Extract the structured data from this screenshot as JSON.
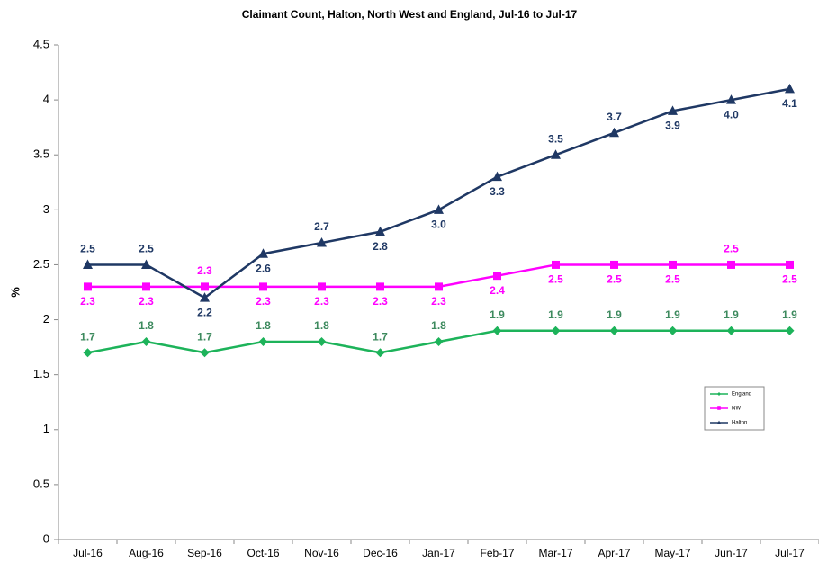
{
  "chart_data": {
    "type": "line",
    "title": "Claimant Count, Halton, North West and England, Jul-16 to Jul-17",
    "y_label": "%",
    "categories": [
      "Jul-16",
      "Aug-16",
      "Sep-16",
      "Oct-16",
      "Nov-16",
      "Dec-16",
      "Jan-17",
      "Feb-17",
      "Mar-17",
      "Apr-17",
      "May-17",
      "Jun-17",
      "Jul-17"
    ],
    "series": [
      {
        "name": "England",
        "color": "#1db35a",
        "label_color": "#3d8a5e",
        "marker": "diamond",
        "values": [
          1.7,
          1.8,
          1.7,
          1.8,
          1.8,
          1.7,
          1.8,
          1.9,
          1.9,
          1.9,
          1.9,
          1.9,
          1.9
        ],
        "value_labels": [
          "1.7",
          "1.8",
          "1.7",
          "1.8",
          "1.8",
          "1.7",
          "1.8",
          "1.9",
          "1.9",
          "1.9",
          "1.9",
          "1.9",
          "1.9"
        ]
      },
      {
        "name": "NW",
        "color": "#ff00ff",
        "label_color": "#ff00ff",
        "marker": "square",
        "values": [
          2.3,
          2.3,
          2.3,
          2.3,
          2.3,
          2.3,
          2.3,
          2.4,
          2.5,
          2.5,
          2.5,
          2.5,
          2.5
        ],
        "value_labels": [
          "2.3",
          "2.3",
          "2.3",
          "2.3",
          "2.3",
          "2.3",
          "2.3",
          "2.4",
          "2.5",
          "2.5",
          "2.5",
          "2.5",
          "2.5"
        ]
      },
      {
        "name": "Halton",
        "color": "#1f3864",
        "label_color": "#1f3864",
        "marker": "triangle",
        "values": [
          2.5,
          2.5,
          2.2,
          2.6,
          2.7,
          2.8,
          3.0,
          3.3,
          3.5,
          3.7,
          3.9,
          4.0,
          4.1
        ],
        "value_labels": [
          "2.5",
          "2.5",
          "2.2",
          "2.6",
          "2.7",
          "2.8",
          "3.0",
          "3.3",
          "3.5",
          "3.7",
          "3.9",
          "4.0",
          "4.1"
        ]
      }
    ],
    "ylim": [
      0,
      4.5
    ],
    "yticks": [
      0,
      0.5,
      1,
      1.5,
      2,
      2.5,
      3,
      3.5,
      4,
      4.5
    ],
    "grid": false,
    "legend": "right"
  }
}
